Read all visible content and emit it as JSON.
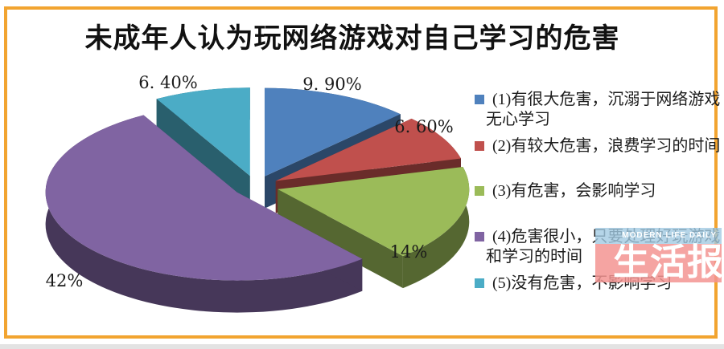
{
  "title": "未成年人认为玩网络游戏对自己学习的危害",
  "frame": {
    "border_color": "#F2A430"
  },
  "chart_data": {
    "type": "pie",
    "style": "3d-exploded",
    "title": "未成年人认为玩网络游戏对自己学习的危害",
    "legend_position": "right",
    "start_angle_deg": -90,
    "direction": "clockwise",
    "slices": [
      {
        "label": "(1)有很大危害，沉溺于网络游戏无心学习",
        "value": 9.9,
        "display": "9. 90%",
        "color": "#4F81BD"
      },
      {
        "label": "(2)有较大危害，浪费学习的时间",
        "value": 6.6,
        "display": "6. 60%",
        "color": "#C0504D"
      },
      {
        "label": "(3)有危害，会影响学习",
        "value": 14,
        "display": "14%",
        "color": "#9BBB59"
      },
      {
        "label": "(4)危害很小，只要处理好玩游戏和学习的时间",
        "value": 42,
        "display": "42%",
        "color": "#8064A2"
      },
      {
        "label": "(5)没有危害，不影响学习",
        "value": 6.4,
        "display": "6. 40%",
        "color": "#4BACC6"
      }
    ]
  },
  "legend": {
    "items": [
      {
        "line1": "(1)有很大危害，沉溺于网络游戏",
        "line2": "无心学习"
      },
      {
        "line1": "(2)有较大危害，浪费学习的时间"
      },
      {
        "line1": "(3)有危害，会影响学习"
      },
      {
        "line1": "(4)危害很小，只要处理好玩游戏",
        "line2": "和学习的时间"
      },
      {
        "line1": "(5)没有危害，不影响学习"
      }
    ]
  },
  "watermark": {
    "tagline": "MODERN LIFE DAILY",
    "name": "生活报",
    "band_blue_color": "#A3CBE2",
    "band_pink_color": "#F39492"
  }
}
